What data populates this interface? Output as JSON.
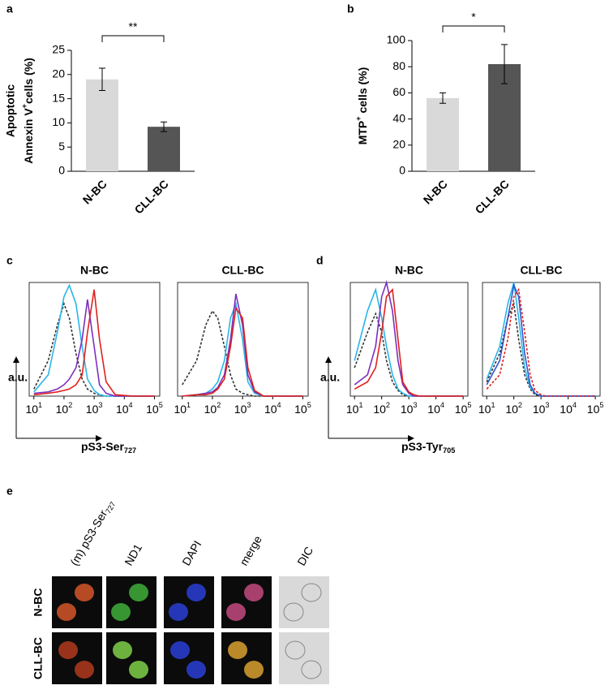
{
  "panel_labels": [
    "a",
    "b",
    "c",
    "d",
    "e"
  ],
  "chart_data": [
    {
      "type": "bar",
      "categories": [
        "N-BC",
        "CLL-BC"
      ],
      "values": [
        19,
        9.2
      ],
      "errors": [
        2.3,
        1.0
      ],
      "colors": [
        "#d9d9d9",
        "#555555"
      ],
      "ylim": [
        0,
        25
      ],
      "yticks": [
        0,
        5,
        10,
        15,
        20,
        25
      ],
      "ylabel": [
        "Apoptotic",
        {
          "pre": "Annexin V",
          "sup": "+",
          "post": "cells (%)"
        }
      ],
      "significance": "**"
    },
    {
      "type": "bar",
      "categories": [
        "N-BC",
        "CLL-BC"
      ],
      "values": [
        56,
        82
      ],
      "errors": [
        4,
        15
      ],
      "colors": [
        "#d9d9d9",
        "#555555"
      ],
      "ylim": [
        0,
        100
      ],
      "yticks": [
        0,
        20,
        40,
        60,
        80,
        100
      ],
      "ylabel": [
        {
          "pre": "MTP",
          "sup": "+",
          "post": " cells (%)"
        }
      ],
      "significance": "*"
    },
    {
      "type": "line",
      "title": "N-BC",
      "log_x": true,
      "xlim": [
        7,
        150000
      ],
      "ylim": [
        0,
        80
      ],
      "xticks": [
        {
          "value": 10,
          "label": "10",
          "sup": "1"
        },
        {
          "value": 100,
          "label": "10",
          "sup": "2"
        },
        {
          "value": 1000,
          "label": "10",
          "sup": "3"
        },
        {
          "value": 10000,
          "label": "10",
          "sup": "4"
        },
        {
          "value": 100000,
          "label": "10",
          "sup": "5"
        }
      ],
      "x": [
        10,
        30,
        60,
        100,
        150,
        250,
        400,
        600,
        1000,
        1500,
        2500,
        5000,
        20000,
        100000
      ],
      "series": [
        {
          "color": "#333333",
          "dash": true,
          "values": [
            5,
            25,
            50,
            65,
            55,
            30,
            12,
            5,
            2,
            1,
            0,
            0,
            0,
            0
          ]
        },
        {
          "color": "#29b6e8",
          "values": [
            3,
            15,
            45,
            70,
            78,
            65,
            35,
            12,
            4,
            1,
            0,
            0,
            0,
            0
          ]
        },
        {
          "color": "#7b2fbe",
          "values": [
            2,
            3,
            5,
            8,
            12,
            20,
            40,
            68,
            35,
            8,
            2,
            0,
            0,
            0
          ]
        },
        {
          "color": "#e0201b",
          "values": [
            1,
            2,
            3,
            4,
            5,
            8,
            15,
            45,
            75,
            40,
            10,
            1,
            0,
            0
          ]
        }
      ]
    },
    {
      "type": "line",
      "title": "CLL-BC",
      "log_x": true,
      "xlim": [
        7,
        150000
      ],
      "ylim": [
        0,
        80
      ],
      "xticks": [
        {
          "value": 10,
          "label": "10",
          "sup": "1"
        },
        {
          "value": 100,
          "label": "10",
          "sup": "2"
        },
        {
          "value": 1000,
          "label": "10",
          "sup": "3"
        },
        {
          "value": 10000,
          "label": "10",
          "sup": "4"
        },
        {
          "value": 100000,
          "label": "10",
          "sup": "5"
        }
      ],
      "x": [
        10,
        30,
        60,
        100,
        150,
        250,
        400,
        600,
        1000,
        1500,
        2500,
        5000,
        20000,
        100000
      ],
      "series": [
        {
          "color": "#333333",
          "dash": true,
          "values": [
            8,
            25,
            50,
            60,
            55,
            35,
            15,
            5,
            2,
            1,
            0,
            0,
            0,
            0
          ]
        },
        {
          "color": "#29b6e8",
          "values": [
            0,
            1,
            2,
            5,
            10,
            25,
            55,
            65,
            40,
            10,
            2,
            0,
            0,
            0
          ]
        },
        {
          "color": "#7b2fbe",
          "values": [
            0,
            1,
            2,
            3,
            6,
            15,
            40,
            72,
            50,
            15,
            3,
            0,
            0,
            0
          ]
        },
        {
          "color": "#e0201b",
          "values": [
            0,
            1,
            1,
            2,
            5,
            12,
            35,
            62,
            55,
            20,
            4,
            0,
            0,
            0
          ]
        }
      ]
    },
    {
      "type": "line",
      "title": "N-BC",
      "log_x": true,
      "xlim": [
        7,
        150000
      ],
      "ylim": [
        0,
        80
      ],
      "xticks": [
        {
          "value": 10,
          "label": "10",
          "sup": "1"
        },
        {
          "value": 100,
          "label": "10",
          "sup": "2"
        },
        {
          "value": 1000,
          "label": "10",
          "sup": "3"
        },
        {
          "value": 10000,
          "label": "10",
          "sup": "4"
        },
        {
          "value": 100000,
          "label": "10",
          "sup": "5"
        }
      ],
      "x": [
        10,
        30,
        60,
        100,
        150,
        250,
        400,
        600,
        1000,
        1500,
        2500,
        5000,
        20000,
        100000
      ],
      "series": [
        {
          "color": "#333333",
          "dash": true,
          "values": [
            20,
            45,
            58,
            45,
            25,
            10,
            4,
            1,
            0,
            0,
            0,
            0,
            0,
            0
          ]
        },
        {
          "color": "#29b6e8",
          "values": [
            25,
            60,
            75,
            55,
            35,
            15,
            5,
            2,
            0,
            0,
            0,
            0,
            0,
            0
          ]
        },
        {
          "color": "#7b2fbe",
          "values": [
            8,
            15,
            35,
            70,
            80,
            60,
            25,
            8,
            2,
            0,
            0,
            0,
            0,
            0
          ]
        },
        {
          "color": "#e0201b",
          "values": [
            5,
            10,
            20,
            45,
            70,
            75,
            40,
            10,
            3,
            1,
            0,
            0,
            0,
            0
          ]
        }
      ]
    },
    {
      "type": "line",
      "title": "CLL-BC",
      "log_x": true,
      "xlim": [
        7,
        150000
      ],
      "ylim": [
        0,
        80
      ],
      "xticks": [
        {
          "value": 10,
          "label": "10",
          "sup": "1"
        },
        {
          "value": 100,
          "label": "10",
          "sup": "2"
        },
        {
          "value": 1000,
          "label": "10",
          "sup": "3"
        },
        {
          "value": 10000,
          "label": "10",
          "sup": "4"
        },
        {
          "value": 100000,
          "label": "10",
          "sup": "5"
        }
      ],
      "x": [
        10,
        30,
        60,
        100,
        150,
        250,
        400,
        600,
        1000,
        1500,
        2500,
        5000,
        20000,
        100000
      ],
      "series": [
        {
          "color": "#333333",
          "dash": true,
          "values": [
            10,
            30,
            55,
            65,
            40,
            15,
            5,
            1,
            0,
            0,
            0,
            0,
            0,
            0
          ]
        },
        {
          "color": "#29b6e8",
          "values": [
            12,
            35,
            65,
            80,
            55,
            20,
            6,
            2,
            0,
            0,
            0,
            0,
            0,
            0
          ]
        },
        {
          "color": "#3355cc",
          "values": [
            8,
            25,
            55,
            78,
            70,
            30,
            8,
            2,
            0,
            0,
            0,
            0,
            0,
            0
          ]
        },
        {
          "color": "#e0201b",
          "dash": true,
          "values": [
            5,
            15,
            40,
            70,
            75,
            45,
            15,
            4,
            1,
            0,
            0,
            0,
            0,
            0
          ]
        }
      ]
    }
  ],
  "panel_c": {
    "ylabel": "a.u.",
    "xlabel": {
      "text": "pS3-Ser",
      "sub": "727"
    }
  },
  "panel_d": {
    "ylabel": "a.u.",
    "xlabel": {
      "text": "pS3-Tyr",
      "sub": "705"
    }
  },
  "panel_e": {
    "columns": [
      {
        "text": "(m) pS3-Ser",
        "sub": "727"
      },
      {
        "text": "ND1"
      },
      {
        "text": "DAPI"
      },
      {
        "text": "merge"
      },
      {
        "text": "DIC"
      }
    ],
    "rows": [
      "N-BC",
      "CLL-BC"
    ]
  }
}
